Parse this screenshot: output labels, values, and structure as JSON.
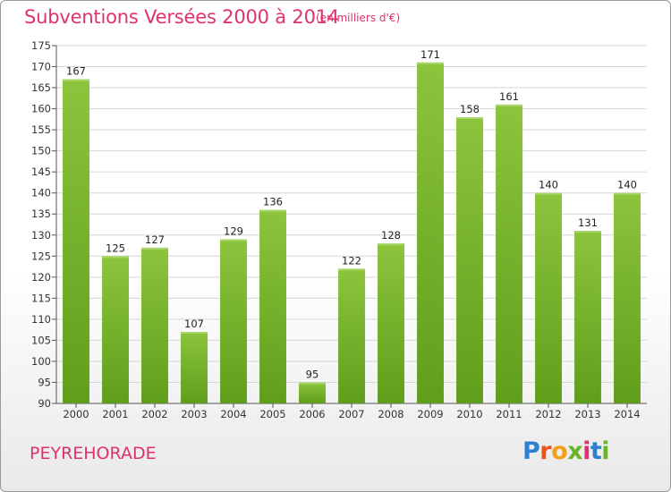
{
  "header": {
    "title": "Subventions Versées 2000 à 2014",
    "subtitle": "(en milliers d'€)"
  },
  "footer": {
    "commune": "PEYREHORADE",
    "logo_letters": [
      "P",
      "r",
      "o",
      "x",
      "i",
      "t",
      "i"
    ],
    "logo_colors": [
      "#2e7fd0",
      "#e8541c",
      "#f2a01c",
      "#6ab42a",
      "#e0316f",
      "#2e7fd0",
      "#6ab42a"
    ]
  },
  "chart_data": {
    "type": "bar",
    "title": "Subventions Versées 2000 à 2014",
    "subtitle": "(en milliers d'€)",
    "categories": [
      "2000",
      "2001",
      "2002",
      "2003",
      "2004",
      "2005",
      "2006",
      "2007",
      "2008",
      "2009",
      "2010",
      "2011",
      "2012",
      "2013",
      "2014"
    ],
    "values": [
      167,
      125,
      127,
      107,
      129,
      136,
      95,
      122,
      128,
      171,
      158,
      161,
      140,
      131,
      140
    ],
    "data_labels": [
      "167",
      "125",
      "127",
      "107",
      "129",
      "136",
      "95",
      "122",
      "128",
      "171",
      "158",
      "161",
      "140",
      "131",
      "140"
    ],
    "ylim": [
      90,
      175
    ],
    "yticks": [
      90,
      95,
      100,
      105,
      110,
      115,
      120,
      125,
      130,
      135,
      140,
      145,
      150,
      155,
      160,
      165,
      170,
      175
    ],
    "ytick_labels": [
      "90",
      "95",
      "100",
      "105",
      "110",
      "115",
      "120",
      "125",
      "130",
      "135",
      "140",
      "145",
      "150",
      "155",
      "160",
      "165",
      "170",
      "175"
    ],
    "grid": true,
    "legend": "none",
    "bar_color": "#8cc43c",
    "bar_color_dark": "#5f9e1c",
    "grid_color": "#d6d6d6"
  }
}
